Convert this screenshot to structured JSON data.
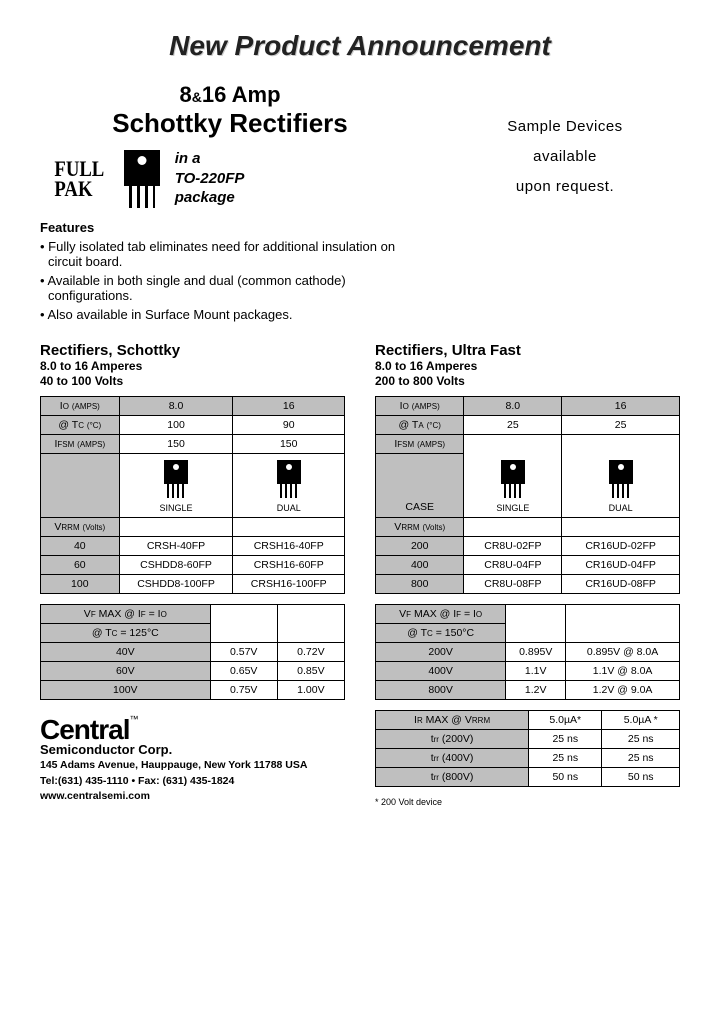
{
  "announce": "New Product Announcement",
  "title_line1_a": "8",
  "title_line1_amp": "&",
  "title_line1_b": "16 Amp",
  "title_line2": "Schottky Rectifiers",
  "fullpak": "FULL\nPAK",
  "pkg_in": "in a",
  "pkg_name": "TO-220FP",
  "pkg_word": "package",
  "sample1": "Sample Devices",
  "sample2": "available",
  "sample3": "upon request.",
  "features_h": "Features",
  "features": [
    "Fully isolated tab eliminates need for additional insulation on circuit board.",
    "Available in both single and dual (common cathode) configurations.",
    "Also available in Surface Mount packages."
  ],
  "schottky": {
    "title": "Rectifiers, Schottky",
    "sub1": "8.0 to 16 Amperes",
    "sub2": "40 to 100 Volts",
    "t1": {
      "r1": [
        "IO (AMPS)",
        "8.0",
        "16"
      ],
      "r2": [
        "@ TC (°C)",
        "100",
        "90"
      ],
      "r3": [
        "IFSM (AMPS)",
        "150",
        "150"
      ],
      "case": [
        "",
        "SINGLE",
        "DUAL"
      ],
      "vrrm_h": "VRRM (Volts)",
      "rows": [
        [
          "40",
          "CRSH-40FP",
          "CRSH16-40FP"
        ],
        [
          "60",
          "CSHDD8-60FP",
          "CRSH16-60FP"
        ],
        [
          "100",
          "CSHDD8-100FP",
          "CRSH16-100FP"
        ]
      ]
    },
    "t2": {
      "h1": "VF MAX @ IF = IO",
      "h2": "@ TC = 125°C",
      "rows": [
        [
          "40V",
          "0.57V",
          "0.72V"
        ],
        [
          "60V",
          "0.65V",
          "0.85V"
        ],
        [
          "100V",
          "0.75V",
          "1.00V"
        ]
      ]
    }
  },
  "ultra": {
    "title": "Rectifiers, Ultra Fast",
    "sub1": "8.0 to 16 Amperes",
    "sub2": "200 to 800 Volts",
    "t1": {
      "r1": [
        "IO (AMPS)",
        "8.0",
        "16"
      ],
      "r2": [
        "@ TA (°C)",
        "25",
        "25"
      ],
      "r3": "IFSM (AMPS)",
      "case": [
        "CASE",
        "SINGLE",
        "DUAL"
      ],
      "vrrm_h": "VRRM (Volts)",
      "rows": [
        [
          "200",
          "CR8U-02FP",
          "CR16UD-02FP"
        ],
        [
          "400",
          "CR8U-04FP",
          "CR16UD-04FP"
        ],
        [
          "800",
          "CR8U-08FP",
          "CR16UD-08FP"
        ]
      ]
    },
    "t2": {
      "h1": "VF MAX @ IF = IO",
      "h2": "@ TC = 150°C",
      "rows": [
        [
          "200V",
          "0.895V",
          "0.895V @ 8.0A"
        ],
        [
          "400V",
          "1.1V",
          "1.1V @ 8.0A"
        ],
        [
          "800V",
          "1.2V",
          "1.2V @ 9.0A"
        ]
      ]
    },
    "t3": {
      "h": "IR MAX @ VRRM",
      "hv": [
        "5.0µA*",
        "5.0µA *"
      ],
      "rows": [
        [
          "trr (200V)",
          "25 ns",
          "25 ns"
        ],
        [
          "trr (400V)",
          "25 ns",
          "25 ns"
        ],
        [
          "trr (800V)",
          "50 ns",
          "50 ns"
        ]
      ]
    },
    "note": "* 200 Volt device"
  },
  "footer": {
    "central": "Central",
    "tm": "™",
    "corp": "Semiconductor Corp.",
    "addr1": "145 Adams Avenue, Hauppauge, New York  11788  USA",
    "addr2": "Tel:(631) 435-1110  •  Fax: (631) 435-1824",
    "addr3": "www.centralsemi.com"
  }
}
